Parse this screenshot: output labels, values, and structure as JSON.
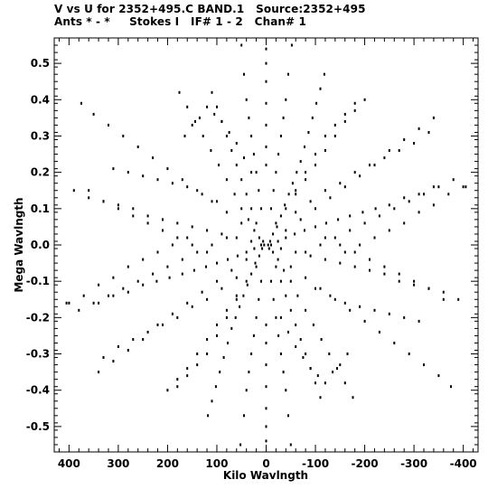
{
  "chart_data": {
    "type": "scatter",
    "title": "V vs U for 2352+495.C BAND.1   Source:2352+495",
    "subtitle": "Ants * - *     Stokes I   IF# 1 - 2   Chan# 1",
    "xlabel": "Kilo Wavlngth",
    "ylabel": "Mega Wavlngth",
    "xlim": [
      430,
      -430
    ],
    "ylim": [
      -0.57,
      0.57
    ],
    "x_ticks": [
      400,
      300,
      200,
      100,
      0,
      -100,
      -200,
      -300,
      -400
    ],
    "y_ticks": [
      -0.5,
      -0.4,
      -0.3,
      -0.2,
      -0.1,
      0.0,
      0.1,
      0.2,
      0.3,
      0.4,
      0.5
    ],
    "x_tick_labels": [
      "400",
      "300",
      "200",
      "100",
      "0",
      "-100",
      "-200",
      "-300",
      "-400"
    ],
    "y_tick_labels": [
      "-0.5",
      "-0.4",
      "-0.3",
      "-0.2",
      "-0.1",
      "0.0",
      "0.1",
      "0.2",
      "0.3",
      "0.4",
      "0.5"
    ],
    "grid": false,
    "marker_color": "#000000",
    "tracks": [
      {
        "x": [
          4,
          8,
          14,
          22,
          30,
          38,
          46,
          54,
          62,
          70,
          78,
          86,
          94,
          102,
          110,
          118
        ],
        "y": [
          0.0,
          -0.01,
          -0.03,
          -0.05,
          -0.08,
          -0.11,
          -0.14,
          -0.17,
          -0.2,
          -0.23,
          -0.27,
          -0.31,
          -0.35,
          -0.39,
          -0.43,
          -0.47
        ]
      },
      {
        "x": [
          -4,
          -8,
          -14,
          -22,
          -30,
          -38,
          -46,
          -54,
          -62,
          -70,
          -78,
          -86,
          -94,
          -102,
          -110,
          -118
        ],
        "y": [
          0.0,
          0.01,
          0.03,
          0.05,
          0.08,
          0.11,
          0.14,
          0.17,
          0.2,
          0.23,
          0.27,
          0.31,
          0.35,
          0.39,
          0.43,
          0.47
        ]
      },
      {
        "x": [
          -6,
          -14,
          -24,
          -36,
          -50,
          -64,
          -80,
          -96,
          -112,
          -128,
          -144,
          -160,
          -176
        ],
        "y": [
          -0.01,
          -0.02,
          -0.04,
          -0.07,
          -0.1,
          -0.14,
          -0.18,
          -0.22,
          -0.26,
          -0.3,
          -0.34,
          -0.38,
          -0.42
        ]
      },
      {
        "x": [
          6,
          14,
          24,
          36,
          50,
          64,
          80,
          96,
          112,
          128,
          144,
          160,
          176
        ],
        "y": [
          0.01,
          0.02,
          0.04,
          0.07,
          0.1,
          0.14,
          0.18,
          0.22,
          0.26,
          0.3,
          0.34,
          0.38,
          0.42
        ]
      },
      {
        "x": [
          -10,
          -24,
          -40,
          -58,
          -78,
          -100,
          -122,
          -146,
          -170,
          -196,
          -222,
          -250,
          -280,
          -310,
          -340
        ],
        "y": [
          0.0,
          0.01,
          0.02,
          0.03,
          0.04,
          0.05,
          0.06,
          0.07,
          0.08,
          0.09,
          0.1,
          0.11,
          0.13,
          0.14,
          0.16
        ]
      },
      {
        "x": [
          10,
          24,
          40,
          58,
          78,
          100,
          122,
          146,
          170,
          196,
          222,
          250,
          280,
          310,
          340
        ],
        "y": [
          0.0,
          -0.01,
          -0.02,
          -0.03,
          -0.04,
          -0.05,
          -0.06,
          -0.07,
          -0.08,
          -0.09,
          -0.1,
          -0.11,
          -0.13,
          -0.14,
          -0.16
        ]
      },
      {
        "x": [
          30,
          60,
          90,
          120,
          150,
          180,
          210,
          240,
          270,
          300,
          330,
          360,
          390
        ],
        "y": [
          0.01,
          0.02,
          0.03,
          0.04,
          0.05,
          0.06,
          0.07,
          0.08,
          0.1,
          0.11,
          0.12,
          0.13,
          0.15
        ]
      },
      {
        "x": [
          -30,
          -60,
          -90,
          -120,
          -150,
          -180,
          -210,
          -240,
          -270,
          -300,
          -330,
          -360,
          -390
        ],
        "y": [
          -0.01,
          -0.02,
          -0.03,
          -0.04,
          -0.05,
          -0.06,
          -0.07,
          -0.08,
          -0.1,
          -0.11,
          -0.12,
          -0.13,
          -0.15
        ]
      },
      {
        "x": [
          50,
          80,
          110,
          140,
          170,
          200,
          230,
          260,
          290,
          320,
          350,
          375
        ],
        "y": [
          0.06,
          0.09,
          0.12,
          0.15,
          0.18,
          0.21,
          0.24,
          0.27,
          0.3,
          0.33,
          0.36,
          0.39
        ]
      },
      {
        "x": [
          -50,
          -80,
          -110,
          -140,
          -170,
          -200,
          -230,
          -260,
          -290,
          -320,
          -350,
          -375
        ],
        "y": [
          -0.06,
          -0.09,
          -0.12,
          -0.15,
          -0.18,
          -0.21,
          -0.24,
          -0.27,
          -0.3,
          -0.33,
          -0.36,
          -0.39
        ]
      },
      {
        "x": [
          40,
          70,
          100,
          130,
          160,
          190,
          220,
          250,
          280,
          310,
          340
        ],
        "y": [
          -0.04,
          -0.07,
          -0.1,
          -0.13,
          -0.16,
          -0.19,
          -0.22,
          -0.26,
          -0.29,
          -0.32,
          -0.35
        ]
      },
      {
        "x": [
          -40,
          -70,
          -100,
          -130,
          -160,
          -190,
          -220,
          -250,
          -280,
          -310,
          -340
        ],
        "y": [
          0.04,
          0.07,
          0.1,
          0.13,
          0.16,
          0.19,
          0.22,
          0.26,
          0.29,
          0.32,
          0.35
        ]
      },
      {
        "x": [
          80,
          110,
          140,
          170,
          200,
          230,
          260,
          290,
          320,
          350,
          380,
          405
        ],
        "y": [
          0.02,
          0.0,
          -0.02,
          -0.04,
          -0.06,
          -0.08,
          -0.1,
          -0.12,
          -0.14,
          -0.16,
          -0.18,
          -0.16
        ]
      },
      {
        "x": [
          -80,
          -110,
          -140,
          -170,
          -200,
          -230,
          -260,
          -290,
          -320,
          -350,
          -380,
          -405
        ],
        "y": [
          -0.02,
          0.0,
          0.02,
          0.04,
          0.06,
          0.08,
          0.1,
          0.12,
          0.14,
          0.16,
          0.18,
          0.16
        ]
      },
      {
        "x": [
          20,
          30,
          40,
          50,
          60,
          70,
          80,
          90,
          100,
          110
        ],
        "y": [
          0.06,
          0.1,
          0.14,
          0.18,
          0.22,
          0.26,
          0.3,
          0.34,
          0.38,
          0.42
        ]
      },
      {
        "x": [
          -20,
          -30,
          -40,
          -50,
          -60,
          -70,
          -80,
          -90,
          -100,
          -110
        ],
        "y": [
          -0.06,
          -0.1,
          -0.14,
          -0.18,
          -0.22,
          -0.26,
          -0.3,
          -0.34,
          -0.38,
          -0.42
        ]
      },
      {
        "x": [
          10,
          15,
          20,
          25,
          30,
          35,
          40,
          45,
          50
        ],
        "y": [
          0.1,
          0.15,
          0.2,
          0.25,
          0.3,
          0.35,
          0.4,
          0.47,
          0.55
        ]
      },
      {
        "x": [
          -10,
          -15,
          -20,
          -25,
          -30,
          -35,
          -40,
          -45,
          -50
        ],
        "y": [
          -0.1,
          -0.15,
          -0.2,
          -0.25,
          -0.3,
          -0.35,
          -0.4,
          -0.47,
          -0.55
        ]
      },
      {
        "x": [
          -10,
          -15,
          -20,
          -25,
          -30,
          -35,
          -40,
          -45,
          -52
        ],
        "y": [
          0.1,
          0.15,
          0.2,
          0.25,
          0.3,
          0.35,
          0.4,
          0.47,
          0.55
        ]
      },
      {
        "x": [
          10,
          15,
          20,
          25,
          30,
          35,
          40,
          45,
          52
        ],
        "y": [
          -0.1,
          -0.15,
          -0.2,
          -0.25,
          -0.3,
          -0.35,
          -0.4,
          -0.47,
          -0.55
        ]
      },
      {
        "x": [
          -20,
          -40,
          -60,
          -80,
          -100,
          -120,
          -140,
          -160,
          -180,
          -200
        ],
        "y": [
          0.06,
          0.1,
          0.14,
          0.18,
          0.22,
          0.26,
          0.3,
          0.34,
          0.37,
          0.4
        ]
      },
      {
        "x": [
          20,
          40,
          60,
          80,
          100,
          120,
          140,
          160,
          180,
          200
        ],
        "y": [
          -0.06,
          -0.1,
          -0.14,
          -0.18,
          -0.22,
          -0.26,
          -0.3,
          -0.34,
          -0.37,
          -0.4
        ]
      },
      {
        "x": [
          60,
          90,
          120,
          150,
          180,
          210,
          240,
          270,
          300,
          330
        ],
        "y": [
          -0.09,
          -0.12,
          -0.15,
          -0.17,
          -0.2,
          -0.22,
          -0.24,
          -0.26,
          -0.28,
          -0.31
        ]
      },
      {
        "x": [
          -60,
          -90,
          -120,
          -150,
          -180,
          -210,
          -240,
          -270,
          -300,
          -330
        ],
        "y": [
          0.09,
          0.12,
          0.15,
          0.17,
          0.2,
          0.22,
          0.24,
          0.26,
          0.28,
          0.31
        ]
      },
      {
        "x": [
          100,
          130,
          160,
          190,
          220,
          250,
          280,
          310
        ],
        "y": [
          0.12,
          0.14,
          0.16,
          0.17,
          0.18,
          0.19,
          0.2,
          0.21
        ]
      },
      {
        "x": [
          -100,
          -130,
          -160,
          -190,
          -220,
          -250,
          -280,
          -310
        ],
        "y": [
          -0.12,
          -0.14,
          -0.16,
          -0.17,
          -0.18,
          -0.19,
          -0.2,
          -0.21
        ]
      },
      {
        "x": [
          30,
          45,
          60,
          75,
          90,
          105,
          120,
          135,
          150,
          165
        ],
        "y": [
          0.2,
          0.24,
          0.28,
          0.31,
          0.34,
          0.36,
          0.38,
          0.35,
          0.33,
          0.3
        ]
      },
      {
        "x": [
          -30,
          -45,
          -60,
          -75,
          -90,
          -105,
          -120,
          -135,
          -150,
          -165
        ],
        "y": [
          -0.2,
          -0.24,
          -0.28,
          -0.31,
          -0.34,
          -0.36,
          -0.38,
          -0.35,
          -0.33,
          -0.3
        ]
      },
      {
        "x": [
          -120,
          -150,
          -180,
          -210,
          -240,
          -270,
          -300,
          -330,
          -360
        ],
        "y": [
          0.02,
          0.0,
          -0.02,
          -0.04,
          -0.06,
          -0.08,
          -0.1,
          -0.12,
          -0.15
        ]
      },
      {
        "x": [
          120,
          150,
          180,
          210,
          240,
          270,
          300,
          330,
          360
        ],
        "y": [
          -0.02,
          0.0,
          0.02,
          0.04,
          0.06,
          0.08,
          0.1,
          0.12,
          0.15
        ]
      },
      {
        "x": [
          -160,
          -190,
          -220,
          -250,
          -280,
          -310,
          -340,
          -370,
          -400
        ],
        "y": [
          -0.02,
          0.0,
          0.02,
          0.04,
          0.06,
          0.09,
          0.11,
          0.14,
          0.16
        ]
      },
      {
        "x": [
          160,
          190,
          220,
          250,
          280,
          310,
          340,
          370,
          400
        ],
        "y": [
          0.02,
          0.0,
          -0.02,
          -0.04,
          -0.06,
          -0.09,
          -0.11,
          -0.14,
          -0.16
        ]
      },
      {
        "x": [
          0,
          0,
          0,
          0,
          0,
          0,
          0
        ],
        "y": [
          0.22,
          0.27,
          0.33,
          0.39,
          0.45,
          0.5,
          0.54
        ]
      },
      {
        "x": [
          0,
          0,
          0,
          0,
          0,
          0,
          0
        ],
        "y": [
          -0.22,
          -0.27,
          -0.33,
          -0.39,
          -0.45,
          -0.5,
          -0.54
        ]
      },
      {
        "x": [
          60,
          80,
          100,
          120,
          140,
          160,
          180
        ],
        "y": [
          -0.15,
          -0.2,
          -0.25,
          -0.3,
          -0.33,
          -0.36,
          -0.39
        ]
      },
      {
        "x": [
          -60,
          -80,
          -100,
          -120,
          -140,
          -160,
          -180
        ],
        "y": [
          0.15,
          0.2,
          0.25,
          0.3,
          0.33,
          0.36,
          0.39
        ]
      }
    ]
  }
}
